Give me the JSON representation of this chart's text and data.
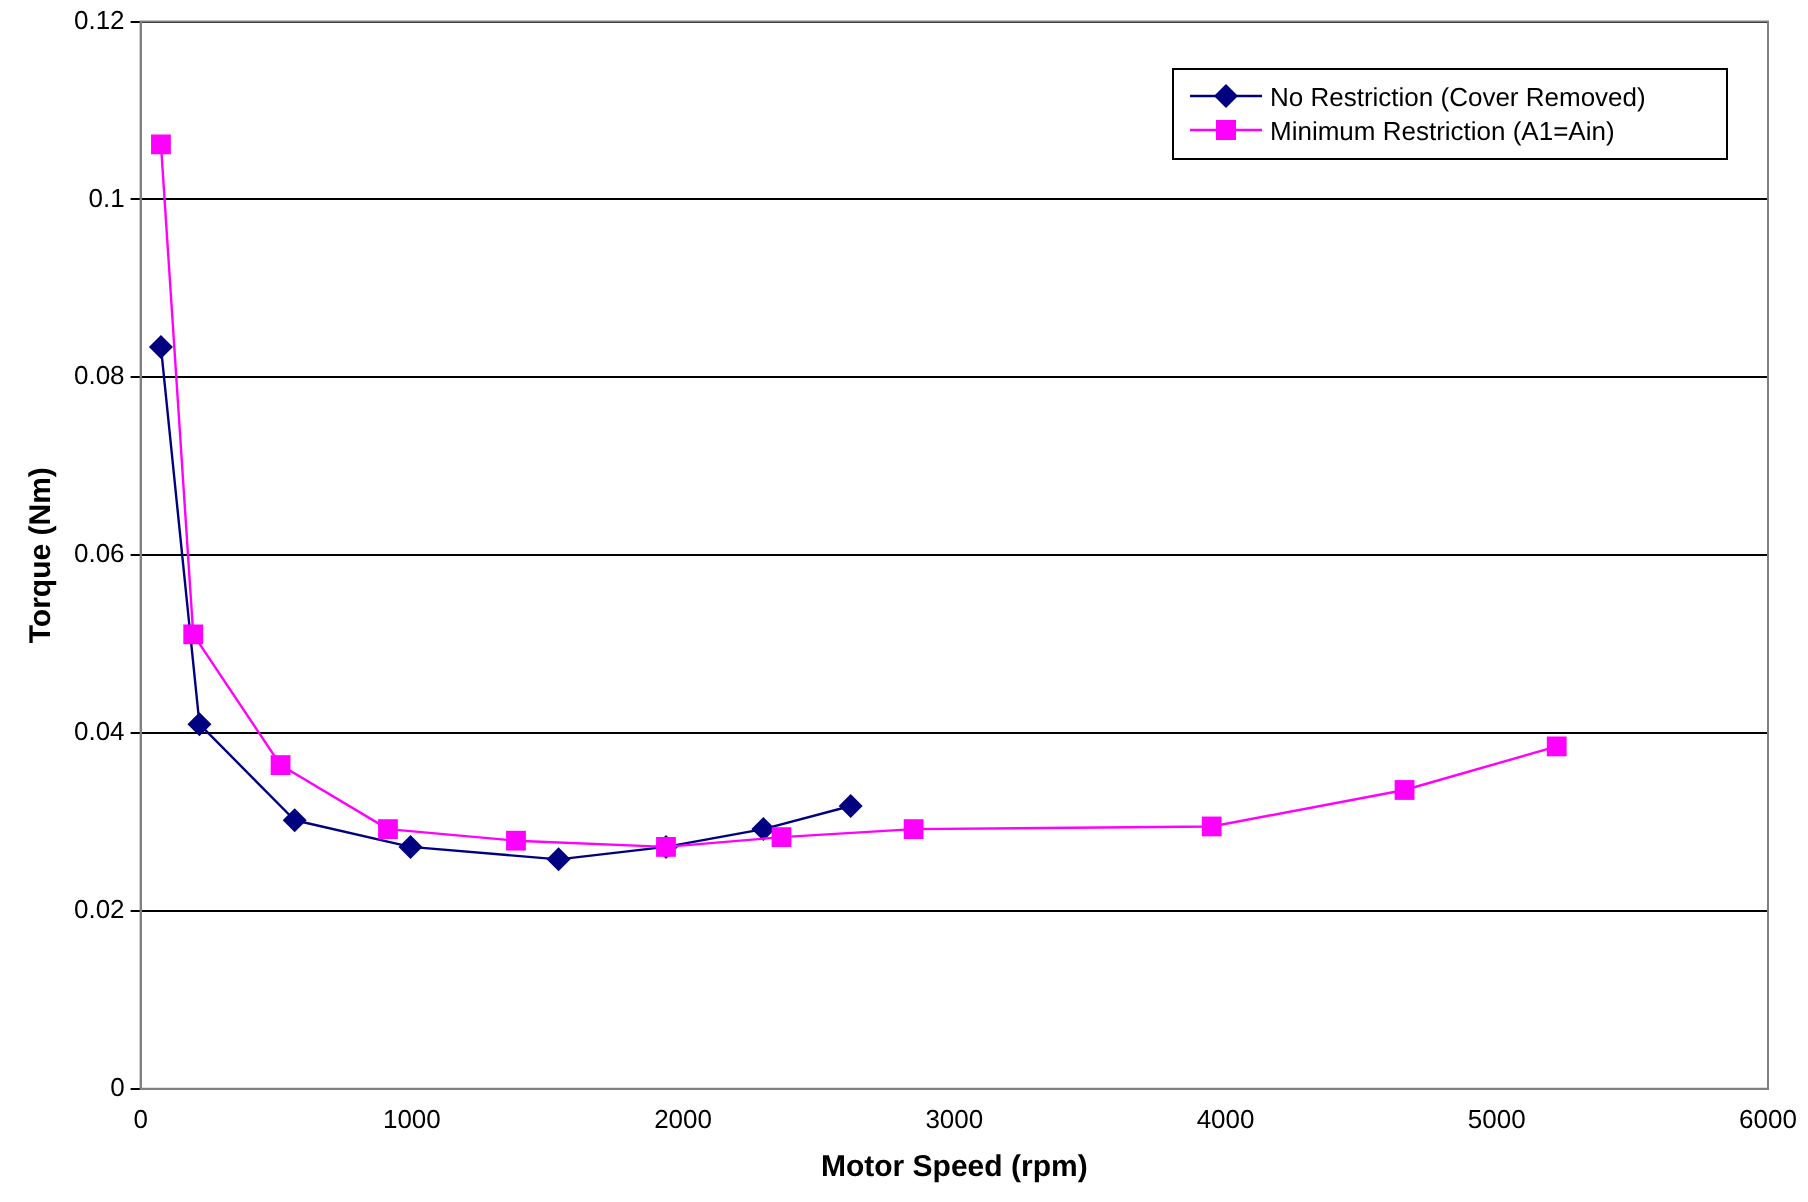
{
  "chart_data": {
    "type": "line",
    "xlabel": "Motor Speed (rpm)",
    "ylabel": "Torque (Nm)",
    "xlim": [
      0,
      6000
    ],
    "xticks": [
      0,
      1000,
      2000,
      3000,
      4000,
      5000,
      6000
    ],
    "ylim": [
      0,
      0.12
    ],
    "yticks": [
      0,
      0.02,
      0.04,
      0.06,
      0.08,
      0.1,
      0.12
    ],
    "grid": "y",
    "legend": "top right",
    "line_style": "solid",
    "series": [
      {
        "name": "No Restriction (Cover Removed)",
        "color": "#000080",
        "marker": "diamond",
        "x": [
          75,
          217,
          568,
          995,
          1541,
          1937,
          2296,
          2618
        ],
        "values": [
          0.0834,
          0.041,
          0.0302,
          0.0272,
          0.0258,
          0.0272,
          0.0292,
          0.0318
        ]
      },
      {
        "name": "Minimum Restriction (A1=Ain)",
        "color": "#ff00ff",
        "marker": "square",
        "x": [
          75,
          194,
          516,
          912,
          1384,
          1937,
          2363,
          2850,
          3949,
          4660,
          5221
        ],
        "values": [
          0.1062,
          0.0511,
          0.0364,
          0.0292,
          0.0279,
          0.0272,
          0.0283,
          0.0292,
          0.0295,
          0.0336,
          0.0385
        ]
      }
    ]
  }
}
